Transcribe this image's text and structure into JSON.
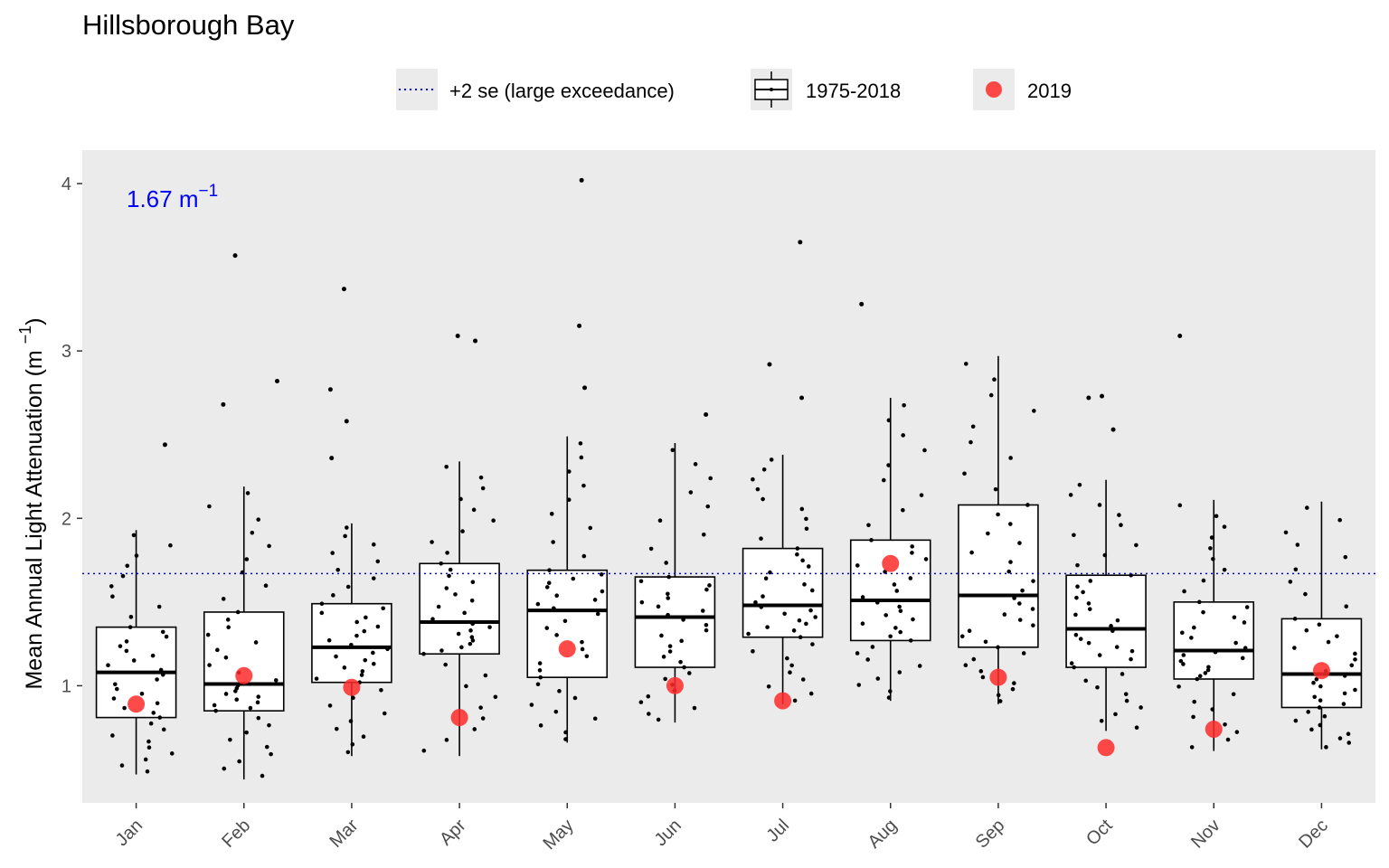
{
  "chart_data": {
    "type": "box",
    "title": "Hillsborough Bay",
    "ylabel": "Mean Annual Light Attenuation (m",
    "ylabel_sup": "−1",
    "ylabel_close": ")",
    "xlabel": "",
    "ylim": [
      0.3,
      4.2
    ],
    "yticks": [
      1,
      2,
      3,
      4
    ],
    "categories": [
      "Jan",
      "Feb",
      "Mar",
      "Apr",
      "May",
      "Jun",
      "Jul",
      "Aug",
      "Sep",
      "Oct",
      "Nov",
      "Dec"
    ],
    "reference_line": {
      "value": 1.67,
      "label": "+2 se (large exceedance)",
      "color": "#0000ff",
      "style": "dotted"
    },
    "annotation": {
      "text": "1.67 m",
      "sup": "−1"
    },
    "legend": {
      "placement": "top",
      "items": [
        {
          "key": "dotted-line",
          "label": "+2 se (large exceedance)"
        },
        {
          "key": "boxplot",
          "label": "1975-2018"
        },
        {
          "key": "point",
          "label": "2019",
          "color": "#ff2a2a"
        }
      ]
    },
    "box_series_name": "1975-2018",
    "boxes": [
      {
        "month": "Jan",
        "min": 0.47,
        "q1": 0.81,
        "median": 1.08,
        "q3": 1.35,
        "max": 1.93
      },
      {
        "month": "Feb",
        "min": 0.44,
        "q1": 0.85,
        "median": 1.01,
        "q3": 1.44,
        "max": 2.19
      },
      {
        "month": "Mar",
        "min": 0.58,
        "q1": 1.02,
        "median": 1.23,
        "q3": 1.49,
        "max": 1.97
      },
      {
        "month": "Apr",
        "min": 0.58,
        "q1": 1.19,
        "median": 1.38,
        "q3": 1.73,
        "max": 2.34
      },
      {
        "month": "May",
        "min": 0.66,
        "q1": 1.05,
        "median": 1.45,
        "q3": 1.69,
        "max": 2.49
      },
      {
        "month": "Jun",
        "min": 0.78,
        "q1": 1.11,
        "median": 1.41,
        "q3": 1.65,
        "max": 2.45
      },
      {
        "month": "Jul",
        "min": 0.89,
        "q1": 1.29,
        "median": 1.48,
        "q3": 1.82,
        "max": 2.38
      },
      {
        "month": "Aug",
        "min": 0.91,
        "q1": 1.27,
        "median": 1.51,
        "q3": 1.87,
        "max": 2.72
      },
      {
        "month": "Sep",
        "min": 0.89,
        "q1": 1.23,
        "median": 1.54,
        "q3": 2.08,
        "max": 2.97
      },
      {
        "month": "Oct",
        "min": 0.73,
        "q1": 1.11,
        "median": 1.34,
        "q3": 1.66,
        "max": 2.23
      },
      {
        "month": "Nov",
        "min": 0.61,
        "q1": 1.04,
        "median": 1.21,
        "q3": 1.5,
        "max": 2.11
      },
      {
        "month": "Dec",
        "min": 0.62,
        "q1": 0.87,
        "median": 1.07,
        "q3": 1.4,
        "max": 2.1
      }
    ],
    "outliers": [
      {
        "month": "Jan",
        "y": 2.44
      },
      {
        "month": "Feb",
        "y": 2.68
      },
      {
        "month": "Feb",
        "y": 2.82
      },
      {
        "month": "Feb",
        "y": 3.57
      },
      {
        "month": "Mar",
        "y": 2.36
      },
      {
        "month": "Mar",
        "y": 2.58
      },
      {
        "month": "Mar",
        "y": 2.77
      },
      {
        "month": "Mar",
        "y": 3.37
      },
      {
        "month": "Apr",
        "y": 3.06
      },
      {
        "month": "Apr",
        "y": 3.09
      },
      {
        "month": "May",
        "y": 2.78
      },
      {
        "month": "May",
        "y": 3.15
      },
      {
        "month": "May",
        "y": 4.02
      },
      {
        "month": "Jun",
        "y": 2.62
      },
      {
        "month": "Jul",
        "y": 2.72
      },
      {
        "month": "Jul",
        "y": 2.92
      },
      {
        "month": "Jul",
        "y": 3.65
      },
      {
        "month": "Aug",
        "y": 3.28
      },
      {
        "month": "Oct",
        "y": 2.53
      },
      {
        "month": "Oct",
        "y": 2.72
      },
      {
        "month": "Oct",
        "y": 2.73
      },
      {
        "month": "Nov",
        "y": 3.09
      }
    ],
    "series_2019": {
      "name": "2019",
      "color": "#ff2a2a",
      "values": [
        0.89,
        1.06,
        0.99,
        0.81,
        1.22,
        1.0,
        0.91,
        1.73,
        1.05,
        0.63,
        0.74,
        1.09
      ]
    }
  }
}
